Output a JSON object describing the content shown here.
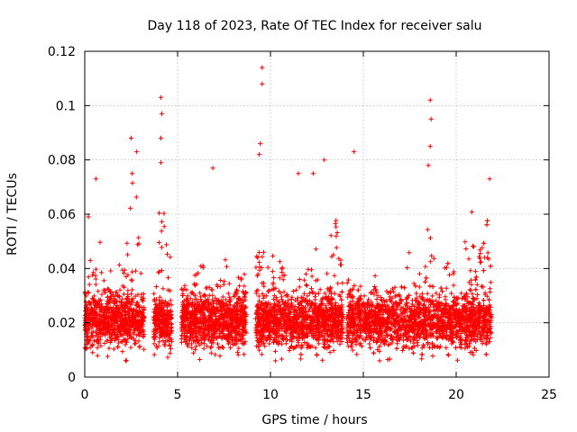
{
  "chart_data": {
    "type": "scatter",
    "title": "Day 118 of 2023, Rate Of TEC Index for receiver salu",
    "xlabel": "GPS time / hours",
    "ylabel": "ROTI / TECUs",
    "xlim": [
      0,
      25
    ],
    "ylim": [
      0,
      0.12
    ],
    "x_ticks": [
      0,
      5,
      10,
      15,
      20,
      25
    ],
    "y_ticks": [
      0,
      0.02,
      0.04,
      0.06,
      0.08,
      0.1,
      0.12
    ],
    "x_tick_labels": [
      "0",
      "5",
      "10",
      "15",
      "20",
      "25"
    ],
    "y_tick_labels": [
      "0",
      "0.02",
      "0.04",
      "0.06",
      "0.08",
      "0.1",
      "0.12"
    ],
    "grid": true,
    "marker": "plus",
    "color": "#ff0000",
    "data_segments": [
      {
        "x_start": 0.0,
        "x_end": 3.2
      },
      {
        "x_start": 3.7,
        "x_end": 4.7
      },
      {
        "x_start": 5.2,
        "x_end": 8.7
      },
      {
        "x_start": 9.2,
        "x_end": 13.9
      },
      {
        "x_start": 14.1,
        "x_end": 21.9
      }
    ],
    "notable_points": [
      {
        "x": 0.2,
        "y": 0.059
      },
      {
        "x": 0.6,
        "y": 0.073
      },
      {
        "x": 2.5,
        "y": 0.088
      },
      {
        "x": 2.8,
        "y": 0.083
      },
      {
        "x": 4.1,
        "y": 0.103
      },
      {
        "x": 4.15,
        "y": 0.097
      },
      {
        "x": 4.1,
        "y": 0.088
      },
      {
        "x": 4.1,
        "y": 0.079
      },
      {
        "x": 6.9,
        "y": 0.077
      },
      {
        "x": 9.55,
        "y": 0.114
      },
      {
        "x": 9.55,
        "y": 0.108
      },
      {
        "x": 9.45,
        "y": 0.086
      },
      {
        "x": 9.4,
        "y": 0.082
      },
      {
        "x": 11.5,
        "y": 0.075
      },
      {
        "x": 12.3,
        "y": 0.075
      },
      {
        "x": 12.9,
        "y": 0.08
      },
      {
        "x": 14.5,
        "y": 0.083
      },
      {
        "x": 18.6,
        "y": 0.102
      },
      {
        "x": 18.65,
        "y": 0.095
      },
      {
        "x": 18.6,
        "y": 0.085
      },
      {
        "x": 18.5,
        "y": 0.078
      },
      {
        "x": 21.8,
        "y": 0.073
      }
    ]
  }
}
